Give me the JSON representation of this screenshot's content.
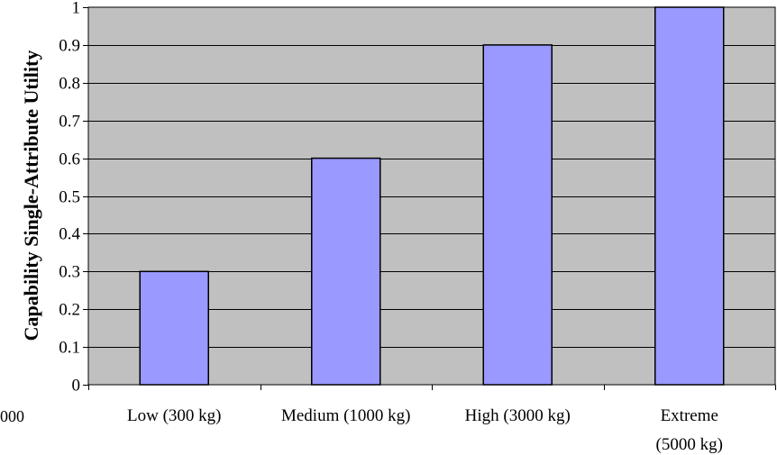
{
  "chart_data": {
    "type": "bar",
    "title": "",
    "xlabel": "",
    "ylabel": "Capability Single-Attribute Utility",
    "categories": [
      [
        "Low (300 kg)"
      ],
      [
        "Medium (1000 kg)"
      ],
      [
        "High (3000 kg)"
      ],
      [
        "Extreme",
        "(5000 kg)"
      ]
    ],
    "values": [
      0.3,
      0.6,
      0.9,
      1.0
    ],
    "ylim": [
      0,
      1
    ],
    "yticks": [
      "0",
      "0.1",
      "0.2",
      "0.3",
      "0.4",
      "0.5",
      "0.6",
      "0.7",
      "0.8",
      "0.9",
      "1"
    ],
    "grid": true,
    "legend": "none",
    "colors": {
      "plot_background": "#c0c0c0",
      "bar_fill": "#9999ff",
      "bar_stroke": "#000000",
      "gridline": "#000000"
    }
  },
  "stray_text": "000"
}
